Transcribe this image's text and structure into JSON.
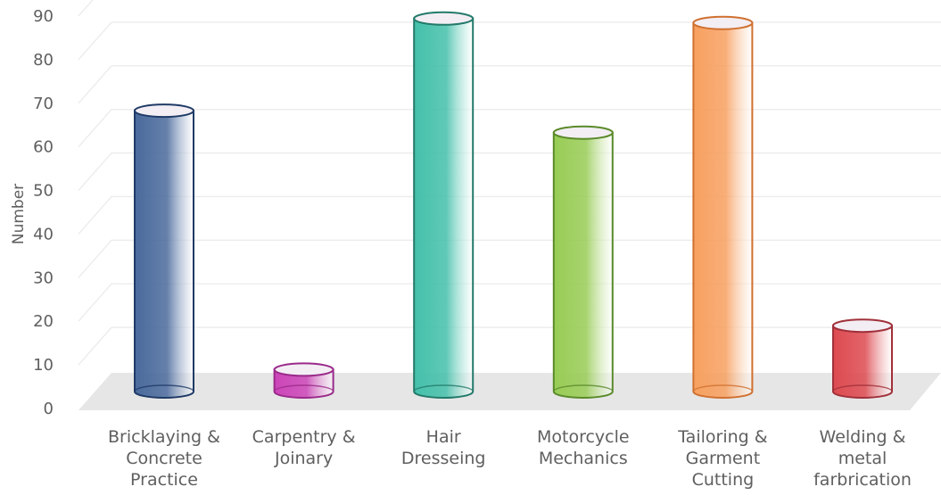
{
  "chart_data": {
    "type": "bar",
    "bar_shape": "cylinder",
    "ylabel": "Number",
    "ylim": [
      0,
      90
    ],
    "yticks": [
      "0",
      "10",
      "20",
      "30",
      "40",
      "50",
      "60",
      "70",
      "80",
      "90"
    ],
    "grid": true,
    "categories": [
      [
        "Bricklaying &",
        "Concrete",
        "Practice"
      ],
      [
        "Carpentry &",
        "Joinary"
      ],
      [
        "Hair",
        "Dresseing"
      ],
      [
        "Motorcycle",
        "Mechanics"
      ],
      [
        "Tailoring &",
        "Garment",
        "Cutting"
      ],
      [
        "Welding &",
        "metal",
        "farbrication"
      ]
    ],
    "values": [
      64,
      5,
      85,
      59,
      84,
      15
    ],
    "colors": [
      "#4a6a9c",
      "#cc44b8",
      "#44c0aa",
      "#98cc55",
      "#f7a060",
      "#dd4a50"
    ],
    "stroke_colors": [
      "#1f3a66",
      "#9a2a8a",
      "#237a6a",
      "#5a8a2a",
      "#d07030",
      "#a0303a"
    ]
  }
}
